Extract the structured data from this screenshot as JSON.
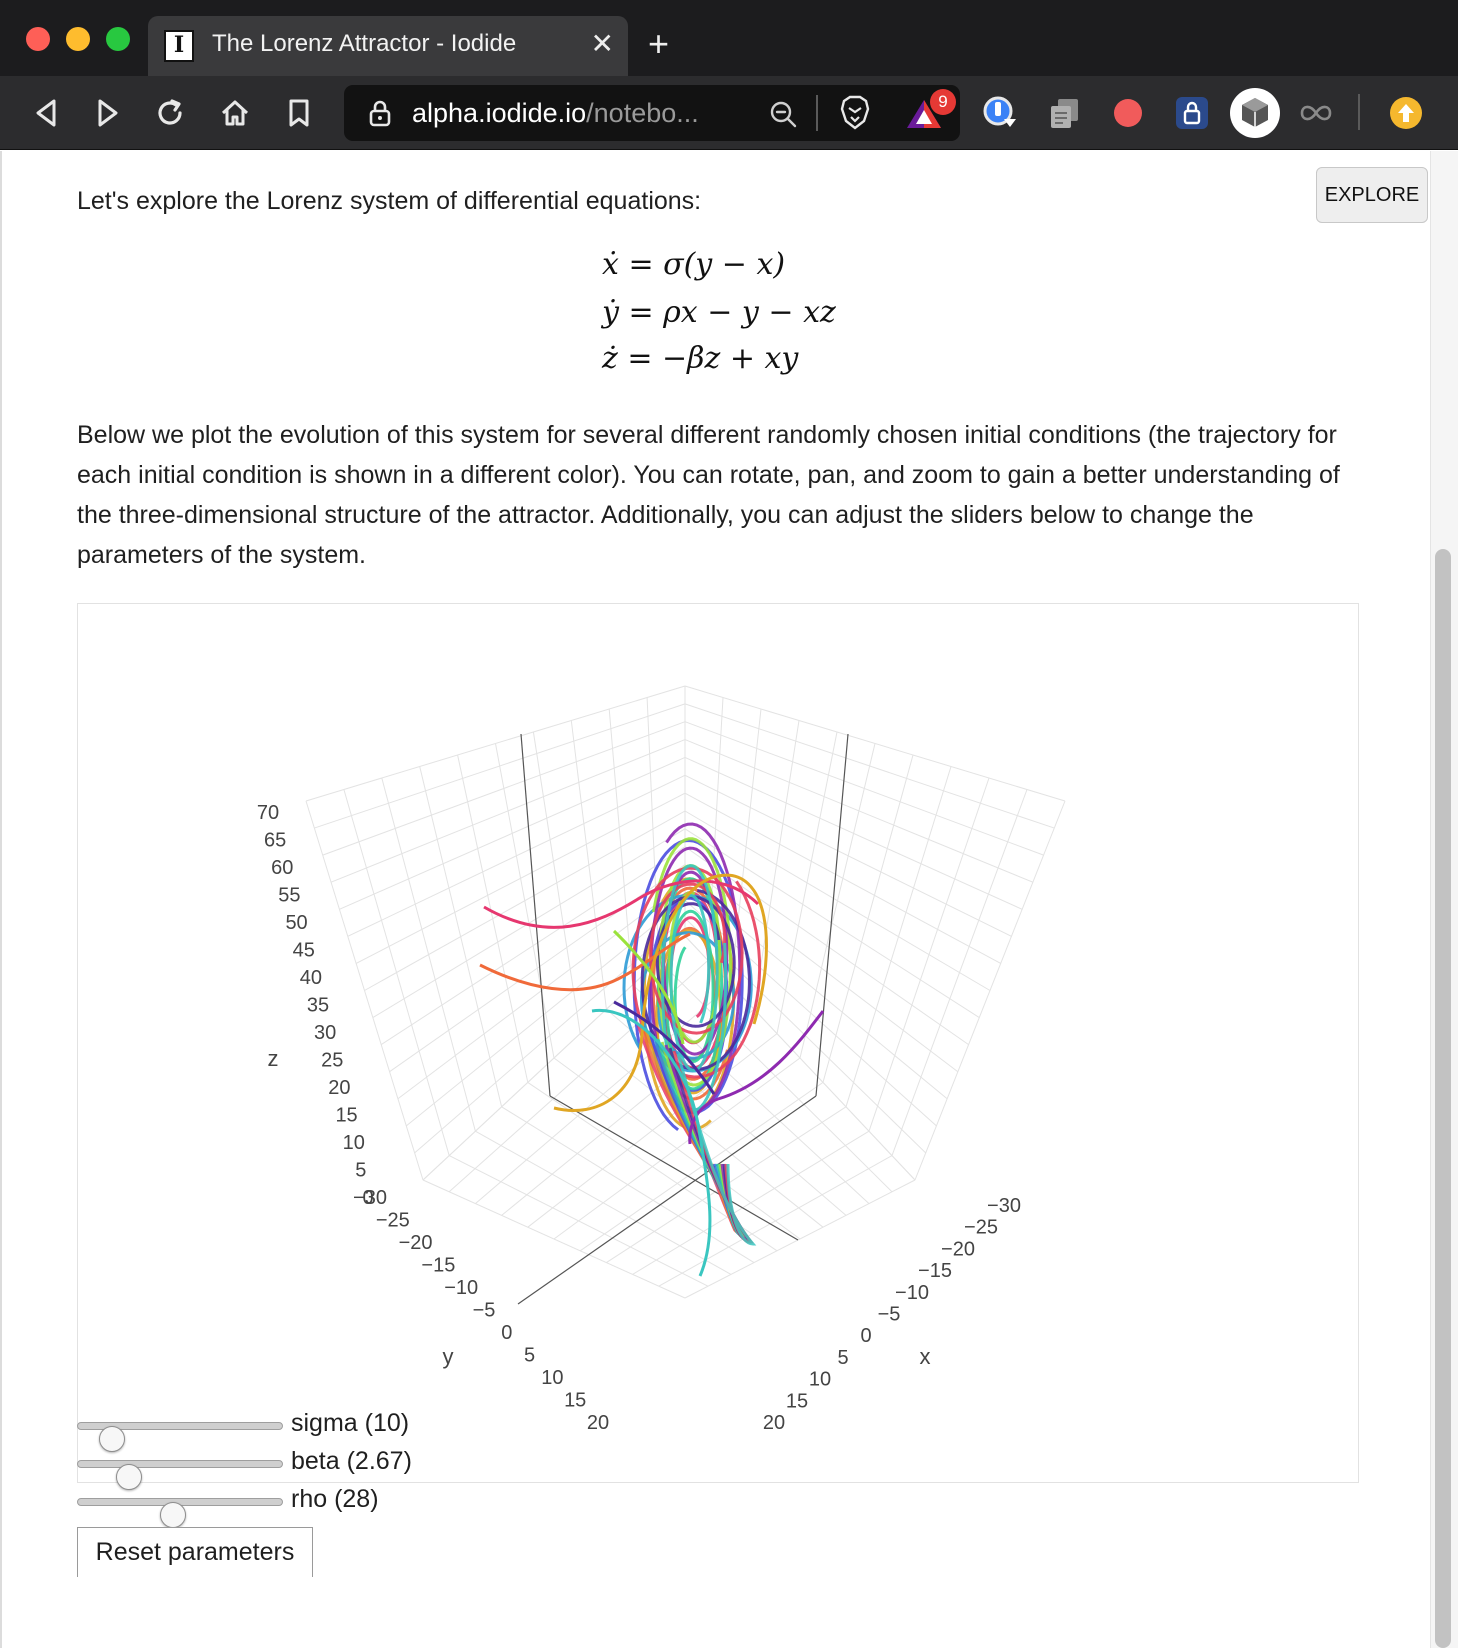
{
  "browser": {
    "tab_title": "The Lorenz Attractor - Iodide",
    "favicon_letter": "I",
    "tab_close": "✕",
    "new_tab": "+",
    "url_host": "alpha.iodide.io",
    "url_path": "/notebo...",
    "extension_badge_count": "9"
  },
  "page": {
    "explore_button": "EXPLORE",
    "intro_text": "Let's explore the Lorenz system of differential equations:",
    "equations": [
      "ẋ = σ(y − x)",
      "ẏ = ρx − y − xz",
      "ż = −βz + xy"
    ],
    "description": "Below we plot the evolution of this system for several different randomly chosen initial conditions (the trajectory for each initial condition is shown in a different color). You can rotate, pan, and zoom to gain a better understanding of the three-dimensional structure of the attractor. Additionally, you can adjust the sliders below to change the parameters of the system.",
    "reset_button": "Reset parameters"
  },
  "sliders": [
    {
      "label": "sigma (10)",
      "name": "sigma",
      "value": 10,
      "min": 0,
      "max": 80
    },
    {
      "label": "beta (2.67)",
      "name": "beta",
      "value": 2.67,
      "min": 0,
      "max": 12
    },
    {
      "label": "rho (28)",
      "name": "rho",
      "value": 28,
      "min": 0,
      "max": 60
    }
  ],
  "plot": {
    "z_axis": {
      "title": "z",
      "ticks": [
        "70",
        "65",
        "60",
        "55",
        "50",
        "45",
        "40",
        "35",
        "30",
        "25",
        "20",
        "15",
        "10",
        "5",
        "0"
      ]
    },
    "y_axis": {
      "title": "y",
      "ticks": [
        "−30",
        "−25",
        "−20",
        "−15",
        "−10",
        "−5",
        "0",
        "5",
        "10",
        "15",
        "20"
      ]
    },
    "x_axis": {
      "title": "x",
      "ticks": [
        "−30",
        "−25",
        "−20",
        "−15",
        "−10",
        "−5",
        "0",
        "5",
        "10",
        "15",
        "20"
      ]
    },
    "trace_colors": [
      "#e6376f",
      "#f06a3a",
      "#e0a623",
      "#4b4ee0",
      "#2e9bd6",
      "#2fd19a",
      "#9be23c",
      "#8e2ab0",
      "#4a2a9c",
      "#e83f5c",
      "#3ac6c0"
    ]
  }
}
